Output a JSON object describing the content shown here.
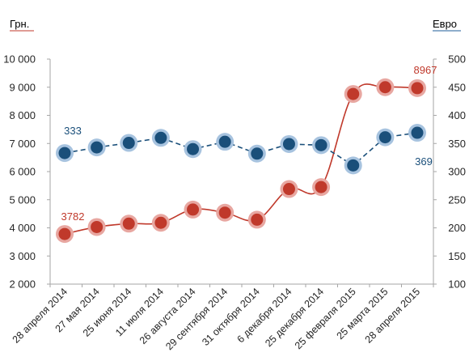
{
  "chart_data": {
    "type": "line",
    "left_axis_label": "Грн.",
    "right_axis_label": "Евро",
    "categories": [
      "28 апреля 2014",
      "27 мая 2014",
      "25 июня 2014",
      "11 июля 2014",
      "26 августа 2014",
      "29 сентября 2014",
      "31 октября 2014",
      "6 декабря 2014",
      "25 декабря 2014",
      "25 февраля 2015",
      "25 марта 2015",
      "28 апреля 2015"
    ],
    "left_ylim": [
      2000,
      10000
    ],
    "left_ticks": [
      "2 000",
      "3 000",
      "4 000",
      "5 000",
      "6 000",
      "7 000",
      "8 000",
      "9 000",
      "10 000"
    ],
    "right_ylim": [
      100,
      500
    ],
    "right_ticks": [
      "100",
      "150",
      "200",
      "250",
      "300",
      "350",
      "400",
      "450",
      "500"
    ],
    "grid": false,
    "legend": "none",
    "series": [
      {
        "axis": "left",
        "style": "solid",
        "color": "#c0392b",
        "halo": "#e8a7a1",
        "values": [
          3782,
          4030,
          4150,
          4180,
          4650,
          4540,
          4290,
          5380,
          5450,
          8760,
          9000,
          8967
        ],
        "labels": [
          {
            "index": 0,
            "text": "3782"
          },
          {
            "index": 11,
            "text": "8967"
          }
        ]
      },
      {
        "axis": "right",
        "style": "dashed",
        "color": "#1a4f7a",
        "halo": "#a7c3df",
        "values": [
          333,
          343,
          351,
          360,
          340,
          353,
          332,
          349,
          347,
          311,
          361,
          369
        ],
        "labels": [
          {
            "index": 0,
            "text": "333"
          },
          {
            "index": 11,
            "text": "369"
          }
        ]
      }
    ],
    "colors": {
      "left_axis_label": "#c0392b",
      "right_axis_label": "#1f5d99",
      "axis_line": "#a6a6a6"
    }
  }
}
